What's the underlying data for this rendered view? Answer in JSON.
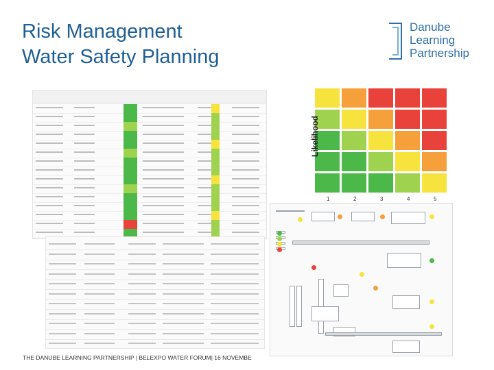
{
  "header": {
    "title_line1": "Risk Management",
    "title_line2": "Water Safety Planning"
  },
  "logo": {
    "line1": "Danube",
    "line2": "Learning",
    "line3": "Partnership"
  },
  "matrix": {
    "axis_label": "Likelihood",
    "x_numbers": [
      "1",
      "2",
      "3",
      "4",
      "5"
    ]
  },
  "footer": {
    "text": "THE DANUBE LEARNING PARTNERSHIP | BELEXPO WATER FORUM| 16 NOVEMBE"
  },
  "colors": {
    "title": "#1f5f95",
    "red": "#e8423b",
    "orange": "#f6a03c",
    "yellow": "#f7e33d",
    "lightgreen": "#9fd24f",
    "green": "#4cb84a"
  }
}
